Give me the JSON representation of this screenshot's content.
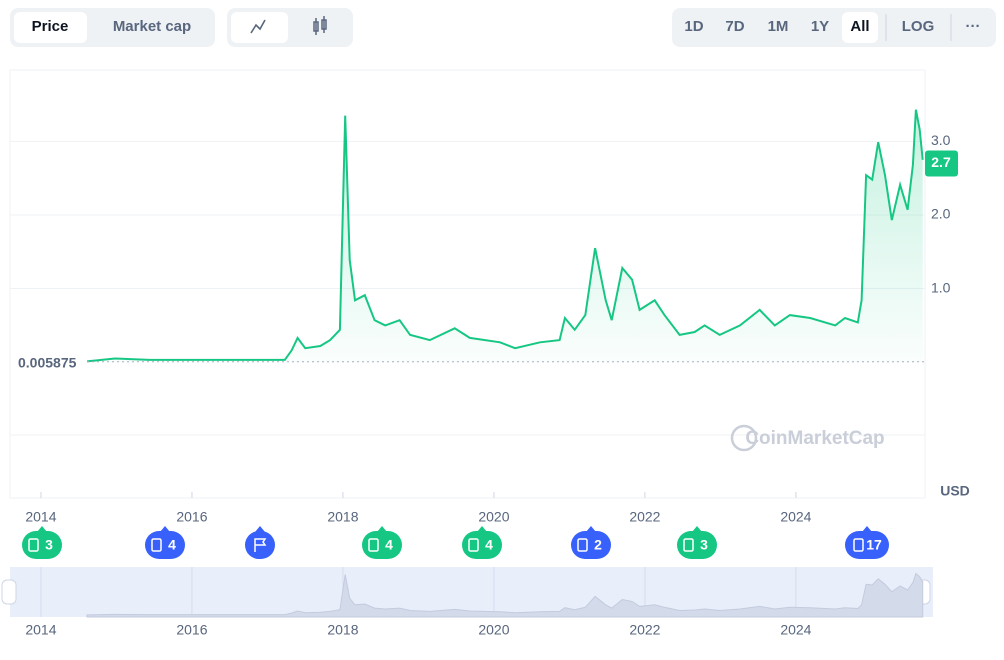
{
  "controls": {
    "metric_tabs": [
      "Price",
      "Market cap"
    ],
    "range_tabs": [
      "1D",
      "7D",
      "1M",
      "1Y",
      "All",
      "LOG",
      "···"
    ]
  },
  "events": [
    "3",
    "4",
    "4",
    "4",
    "2",
    "3",
    "17"
  ],
  "chart_data": {
    "type": "line",
    "color": "#16c784",
    "x": [
      2014.61,
      2014.98,
      2015.44,
      2016.11,
      2017.23,
      2017.32,
      2017.4,
      2017.5,
      2017.7,
      2017.83,
      2017.96,
      2018.03,
      2018.09,
      2018.16,
      2018.29,
      2018.42,
      2018.56,
      2018.75,
      2018.89,
      2019.15,
      2019.48,
      2019.68,
      2020.08,
      2020.28,
      2020.61,
      2020.87,
      2020.94,
      2021.07,
      2021.21,
      2021.34,
      2021.48,
      2021.56,
      2021.7,
      2021.83,
      2021.93,
      2022.13,
      2022.26,
      2022.46,
      2022.66,
      2022.79,
      2022.99,
      2023.26,
      2023.52,
      2023.72,
      2023.92,
      2024.19,
      2024.52,
      2024.65,
      2024.82,
      2024.87,
      2024.93,
      2025.01,
      2025.09,
      2025.18,
      2025.27,
      2025.38,
      2025.48,
      2025.55,
      2025.59,
      2025.64,
      2025.68
    ],
    "values": [
      0.01,
      0.05,
      0.03,
      0.03,
      0.03,
      0.16,
      0.33,
      0.19,
      0.22,
      0.3,
      0.44,
      3.35,
      1.39,
      0.84,
      0.91,
      0.57,
      0.5,
      0.57,
      0.37,
      0.3,
      0.46,
      0.33,
      0.27,
      0.19,
      0.27,
      0.3,
      0.6,
      0.44,
      0.64,
      1.55,
      0.84,
      0.57,
      1.28,
      1.12,
      0.71,
      0.84,
      0.64,
      0.37,
      0.41,
      0.5,
      0.37,
      0.5,
      0.71,
      0.5,
      0.64,
      0.6,
      0.5,
      0.6,
      0.54,
      0.84,
      2.54,
      2.48,
      2.99,
      2.54,
      1.93,
      2.41,
      2.07,
      2.68,
      3.43,
      3.16,
      2.75
    ],
    "xlim": [
      2013.59,
      2025.71
    ],
    "xticks": [
      2014,
      2016,
      2018,
      2020,
      2022,
      2024
    ],
    "ylim": [
      -0.99,
      3.97
    ],
    "yticks": [
      {
        "value": 1,
        "label": "1.0"
      },
      {
        "value": 2,
        "label": "2.0"
      },
      {
        "value": 3,
        "label": "3.0"
      }
    ],
    "grid": true,
    "reference_value": 0.005875,
    "last_price": 2.7,
    "unit": "USD",
    "watermark": "CoinMarketCap"
  }
}
